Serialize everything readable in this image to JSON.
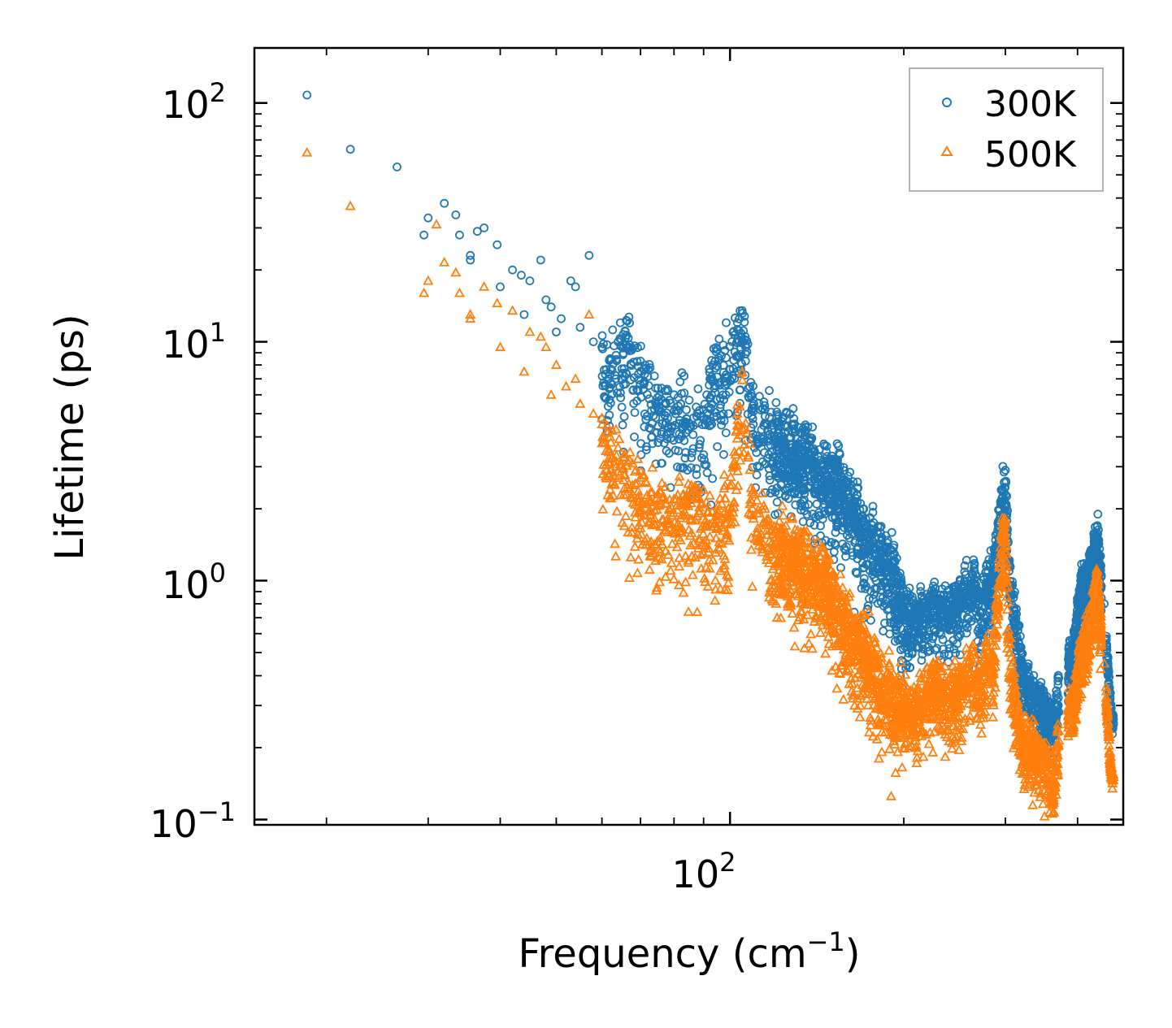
{
  "chart_data": {
    "type": "scatter",
    "title": "",
    "xlabel": "Frequency (cm",
    "xlabel_sup": "−1",
    "xlabel_end": ")",
    "ylabel": "Lifetime (ps)",
    "xscale": "log",
    "yscale": "log",
    "xlim": [
      15,
      480
    ],
    "ylim": [
      0.095,
      170
    ],
    "x_ticks": [
      {
        "base": "10",
        "exp": "2",
        "value": 100
      }
    ],
    "y_ticks": [
      {
        "base": "10",
        "exp": "−1",
        "value": 0.1
      },
      {
        "base": "10",
        "exp": "0",
        "value": 1
      },
      {
        "base": "10",
        "exp": "1",
        "value": 10
      },
      {
        "base": "10",
        "exp": "2",
        "value": 100
      }
    ],
    "legend_position": "top-right",
    "series": [
      {
        "name": "300K",
        "marker": "circle",
        "color": "#1f77b4",
        "anchor_points": [
          [
            18.5,
            108
          ],
          [
            22,
            64
          ],
          [
            26.5,
            54
          ],
          [
            29.5,
            28
          ],
          [
            30,
            33
          ],
          [
            32,
            38
          ],
          [
            33.5,
            34
          ],
          [
            34,
            28
          ],
          [
            35.5,
            23
          ],
          [
            35.5,
            22
          ],
          [
            36.5,
            29
          ],
          [
            37.5,
            30
          ],
          [
            39.5,
            25.5
          ],
          [
            40,
            17
          ],
          [
            42,
            20
          ],
          [
            43.5,
            19
          ],
          [
            44,
            13
          ],
          [
            45,
            18
          ],
          [
            47,
            22
          ],
          [
            48,
            15
          ],
          [
            49,
            14
          ],
          [
            50,
            11
          ],
          [
            51,
            12.5
          ],
          [
            53,
            18
          ],
          [
            54,
            17
          ],
          [
            55,
            11.5
          ],
          [
            57,
            23
          ],
          [
            58,
            10
          ],
          [
            60,
            9.5
          ],
          [
            62,
            8.5
          ],
          [
            64,
            10
          ],
          [
            67,
            12
          ],
          [
            70,
            8.3
          ],
          [
            75,
            6.4
          ],
          [
            80,
            6
          ],
          [
            85,
            5.7
          ],
          [
            90,
            5.2
          ],
          [
            95,
            9.3
          ],
          [
            98,
            9.2
          ],
          [
            105,
            13.5
          ],
          [
            110,
            5.5
          ],
          [
            115,
            5.2
          ],
          [
            120,
            4.6
          ],
          [
            125,
            4.4
          ],
          [
            130,
            4.2
          ],
          [
            140,
            3.5
          ],
          [
            150,
            3.2
          ],
          [
            160,
            2.6
          ],
          [
            170,
            2
          ],
          [
            180,
            1.6
          ],
          [
            190,
            1.35
          ],
          [
            200,
            0.9
          ],
          [
            210,
            0.8
          ],
          [
            225,
            0.95
          ],
          [
            240,
            0.85
          ],
          [
            255,
            1.0
          ],
          [
            265,
            1.1
          ],
          [
            272,
            0.85
          ],
          [
            278,
            1.15
          ],
          [
            285,
            1.1
          ],
          [
            295,
            2.4
          ],
          [
            300,
            2.9
          ],
          [
            305,
            1.15
          ],
          [
            320,
            0.5
          ],
          [
            335,
            0.38
          ],
          [
            350,
            0.33
          ],
          [
            365,
            0.28
          ],
          [
            370,
            0.38
          ],
          [
            393,
            0.55
          ],
          [
            405,
            1.0
          ],
          [
            420,
            1.25
          ],
          [
            433,
            1.7
          ],
          [
            445,
            0.8
          ],
          [
            458,
            0.28
          ]
        ]
      },
      {
        "name": "500K",
        "marker": "triangle",
        "color": "#ff7f0e",
        "anchor_points": [
          [
            18.5,
            62
          ],
          [
            22,
            37
          ],
          [
            29.5,
            16
          ],
          [
            30,
            18
          ],
          [
            31,
            31
          ],
          [
            32,
            21.5
          ],
          [
            33.5,
            19.5
          ],
          [
            34,
            16
          ],
          [
            35.5,
            13
          ],
          [
            35.5,
            12.5
          ],
          [
            37.5,
            17
          ],
          [
            39.5,
            14.5
          ],
          [
            40,
            9.5
          ],
          [
            42,
            13.5
          ],
          [
            44,
            7.5
          ],
          [
            45,
            11
          ],
          [
            47,
            10.5
          ],
          [
            48,
            9.5
          ],
          [
            49,
            6
          ],
          [
            50,
            8
          ],
          [
            52,
            6.5
          ],
          [
            54,
            7
          ],
          [
            55,
            5.5
          ],
          [
            57,
            13
          ],
          [
            58,
            5
          ],
          [
            60,
            4.8
          ],
          [
            62,
            4
          ],
          [
            64,
            3.6
          ],
          [
            67,
            3.2
          ],
          [
            70,
            2.7
          ],
          [
            75,
            2.3
          ],
          [
            80,
            2.2
          ],
          [
            85,
            2.2
          ],
          [
            90,
            2.4
          ],
          [
            95,
            1.9
          ],
          [
            100,
            2.5
          ],
          [
            105,
            7.5
          ],
          [
            110,
            2.3
          ],
          [
            115,
            2.0
          ],
          [
            120,
            1.6
          ],
          [
            125,
            1.7
          ],
          [
            130,
            1.5
          ],
          [
            140,
            1.3
          ],
          [
            150,
            1.05
          ],
          [
            160,
            0.78
          ],
          [
            170,
            0.62
          ],
          [
            180,
            0.48
          ],
          [
            190,
            0.4
          ],
          [
            200,
            0.34
          ],
          [
            210,
            0.32
          ],
          [
            225,
            0.42
          ],
          [
            240,
            0.36
          ],
          [
            255,
            0.45
          ],
          [
            265,
            0.5
          ],
          [
            272,
            0.38
          ],
          [
            278,
            0.55
          ],
          [
            285,
            0.5
          ],
          [
            295,
            1.55
          ],
          [
            300,
            1.8
          ],
          [
            305,
            0.5
          ],
          [
            320,
            0.25
          ],
          [
            335,
            0.22
          ],
          [
            350,
            0.2
          ],
          [
            365,
            0.16
          ],
          [
            370,
            0.25
          ],
          [
            393,
            0.34
          ],
          [
            405,
            0.55
          ],
          [
            420,
            0.7
          ],
          [
            433,
            1.1
          ],
          [
            445,
            0.45
          ],
          [
            458,
            0.16
          ]
        ]
      }
    ]
  }
}
